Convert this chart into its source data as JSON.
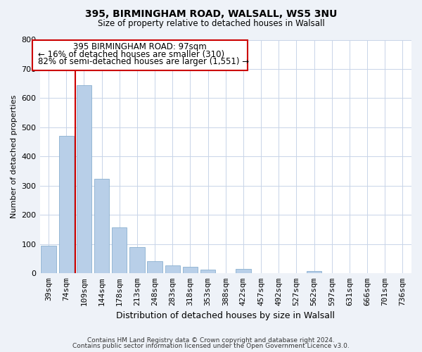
{
  "title1": "395, BIRMINGHAM ROAD, WALSALL, WS5 3NU",
  "title2": "Size of property relative to detached houses in Walsall",
  "xlabel": "Distribution of detached houses by size in Walsall",
  "ylabel": "Number of detached properties",
  "bar_labels": [
    "39sqm",
    "74sqm",
    "109sqm",
    "144sqm",
    "178sqm",
    "213sqm",
    "248sqm",
    "283sqm",
    "318sqm",
    "353sqm",
    "388sqm",
    "422sqm",
    "457sqm",
    "492sqm",
    "527sqm",
    "562sqm",
    "597sqm",
    "631sqm",
    "666sqm",
    "701sqm",
    "736sqm"
  ],
  "bar_values": [
    94,
    470,
    645,
    325,
    158,
    90,
    42,
    28,
    22,
    13,
    0,
    15,
    0,
    0,
    0,
    9,
    0,
    0,
    0,
    0,
    0
  ],
  "bar_color": "#b8cfe8",
  "bar_edge_color": "#8ab0d0",
  "annotation_title": "395 BIRMINGHAM ROAD: 97sqm",
  "annotation_line1": "← 16% of detached houses are smaller (310)",
  "annotation_line2": "82% of semi-detached houses are larger (1,551) →",
  "vline_color": "#cc0000",
  "ylim": [
    0,
    800
  ],
  "yticks": [
    0,
    100,
    200,
    300,
    400,
    500,
    600,
    700,
    800
  ],
  "footer1": "Contains HM Land Registry data © Crown copyright and database right 2024.",
  "footer2": "Contains public sector information licensed under the Open Government Licence v3.0.",
  "bg_color": "#eef2f8",
  "plot_bg_color": "#ffffff",
  "grid_color": "#c8d4e8"
}
